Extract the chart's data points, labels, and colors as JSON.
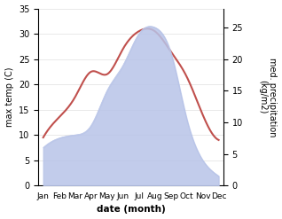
{
  "months": [
    "Jan",
    "Feb",
    "Mar",
    "Apr",
    "May",
    "Jun",
    "Jul",
    "Aug",
    "Sep",
    "Oct",
    "Nov",
    "Dec"
  ],
  "temperature": [
    9.5,
    13.5,
    17.5,
    22.5,
    22.0,
    27.0,
    30.5,
    30.5,
    26.5,
    21.5,
    14.0,
    9.0
  ],
  "precipitation": [
    6.0,
    7.5,
    8.0,
    9.5,
    15.0,
    19.0,
    24.0,
    25.0,
    21.0,
    10.5,
    4.0,
    1.5
  ],
  "temp_color": "#c0504d",
  "precip_fill_color": "#b8c4e8",
  "temp_ylim": [
    0,
    35
  ],
  "precip_ylim": [
    0,
    28.0
  ],
  "temp_yticks": [
    0,
    5,
    10,
    15,
    20,
    25,
    30,
    35
  ],
  "precip_yticks": [
    0,
    5,
    10,
    15,
    20,
    25
  ],
  "precip_yticklabels": [
    "0",
    "5",
    "10",
    "15",
    "20",
    "25"
  ],
  "xlabel": "date (month)",
  "ylabel_left": "max temp (C)",
  "ylabel_right": "med. precipitation\n(kg/m2)",
  "background_color": "#ffffff"
}
